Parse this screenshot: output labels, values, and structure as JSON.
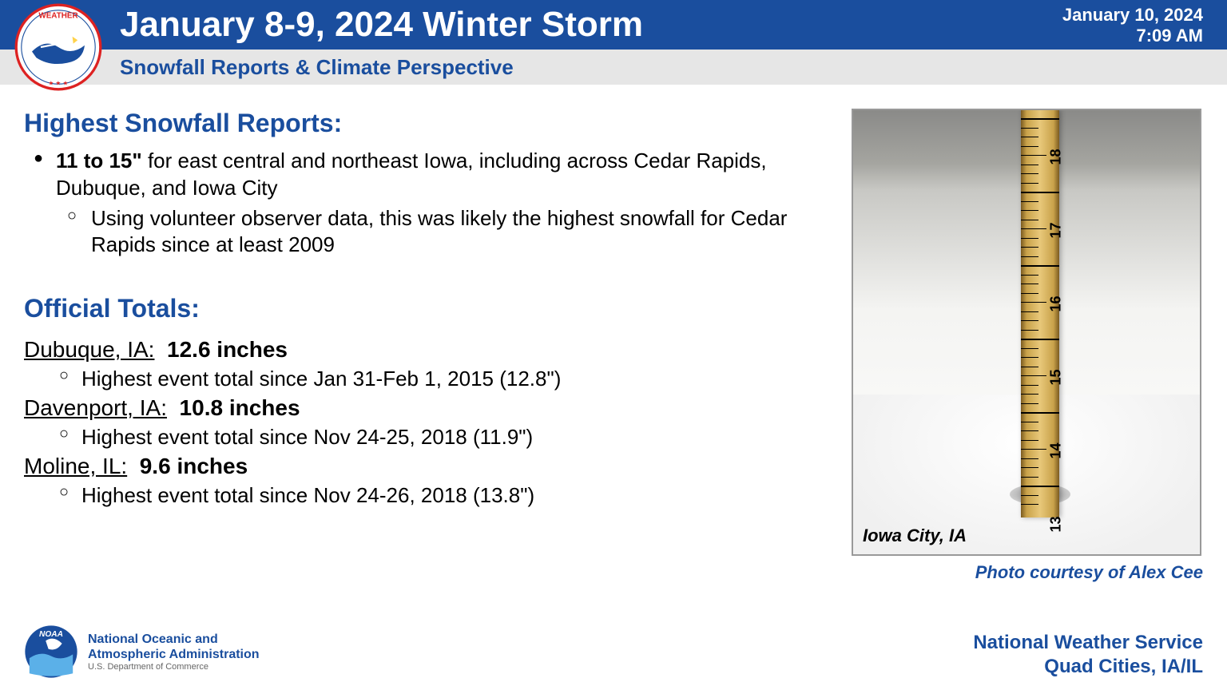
{
  "header": {
    "title": "January 8-9, 2024 Winter Storm",
    "date": "January 10, 2024",
    "time": "7:09 AM",
    "subtitle": "Snowfall Reports & Climate Perspective"
  },
  "section1": {
    "heading": "Highest Snowfall Reports:",
    "bullet_bold": "11 to 15\"",
    "bullet_rest": " for east central and northeast Iowa, including across Cedar Rapids, Dubuque, and Iowa City",
    "sub": "Using volunteer observer data, this was likely the highest snowfall for Cedar Rapids since at least 2009"
  },
  "section2": {
    "heading": "Official Totals:",
    "cities": [
      {
        "name": "Dubuque, IA:",
        "value": "12.6 inches",
        "note": "Highest event total since Jan 31-Feb 1, 2015 (12.8\")"
      },
      {
        "name": "Davenport, IA:",
        "value": "10.8 inches",
        "note": "Highest event total since Nov 24-25, 2018 (11.9\")"
      },
      {
        "name": "Moline, IL:",
        "value": "9.6 inches",
        "note": "Highest event total since Nov 24-26, 2018 (13.8\")"
      }
    ]
  },
  "photo": {
    "location_label": "Iowa City, IA",
    "credit": "Photo courtesy of Alex Cee",
    "ruler_numbers": [
      "18",
      "17",
      "16",
      "15",
      "14",
      "13"
    ]
  },
  "footer": {
    "noaa_line1": "National Oceanic and",
    "noaa_line2": "Atmospheric Administration",
    "noaa_line3": "U.S. Department of Commerce",
    "right_line1": "National Weather Service",
    "right_line2": "Quad Cities, IA/IL"
  },
  "colors": {
    "brand_blue": "#1a4e9e",
    "header_gray": "#e6e6e6"
  }
}
